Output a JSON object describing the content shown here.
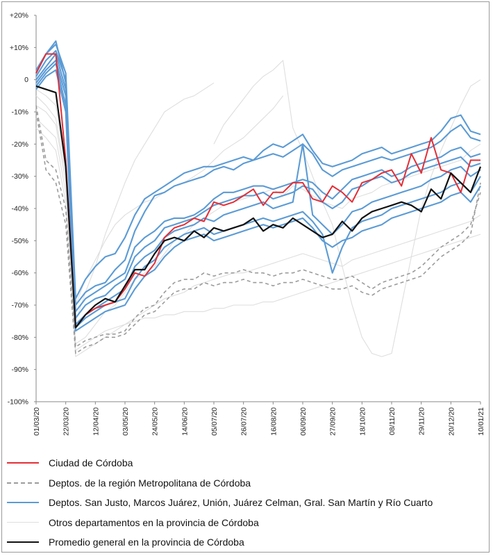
{
  "chart_data": {
    "type": "line",
    "title": "",
    "xlabel": "",
    "ylabel": "",
    "ylim": [
      -100,
      20
    ],
    "y_ticks": [
      {
        "value": 20,
        "label": "+20%"
      },
      {
        "value": 10,
        "label": "+10%"
      },
      {
        "value": 0,
        "label": "0"
      },
      {
        "value": -10,
        "label": "-10%"
      },
      {
        "value": -20,
        "label": "-20%"
      },
      {
        "value": -30,
        "label": "-30%"
      },
      {
        "value": -40,
        "label": "-40%"
      },
      {
        "value": -50,
        "label": "-50%"
      },
      {
        "value": -60,
        "label": "-60%"
      },
      {
        "value": -70,
        "label": "-70%"
      },
      {
        "value": -80,
        "label": "-80%"
      },
      {
        "value": -90,
        "label": "-90%"
      },
      {
        "value": -100,
        "label": "-100%"
      }
    ],
    "x_ticks": [
      {
        "index": 0,
        "label": "01/03/20"
      },
      {
        "index": 3,
        "label": "22/03/20"
      },
      {
        "index": 6,
        "label": "12/04/20"
      },
      {
        "index": 9,
        "label": "03/05/20"
      },
      {
        "index": 12,
        "label": "24/05/20"
      },
      {
        "index": 15,
        "label": "14/06/20"
      },
      {
        "index": 18,
        "label": "05/07/20"
      },
      {
        "index": 21,
        "label": "26/07/20"
      },
      {
        "index": 24,
        "label": "16/08/20"
      },
      {
        "index": 27,
        "label": "06/09/20"
      },
      {
        "index": 30,
        "label": "27/09/20"
      },
      {
        "index": 33,
        "label": "18/10/20"
      },
      {
        "index": 36,
        "label": "08/11/20"
      },
      {
        "index": 39,
        "label": "29/11/20"
      },
      {
        "index": 42,
        "label": "20/12/20"
      },
      {
        "index": 45,
        "label": "10/01/21"
      }
    ],
    "n_points": 46,
    "series": [
      {
        "name": "Otros departamentos en la provincia de Córdoba",
        "group": "otros",
        "values": [
          -5,
          -8,
          -12,
          -30,
          -82,
          -80,
          -76,
          -72,
          -70,
          -66,
          -62,
          -60,
          -58,
          -54,
          -50,
          -48,
          -45,
          -43,
          -41,
          -39,
          -38,
          -37,
          -36,
          -35,
          -34,
          -36,
          -33,
          -34,
          -36,
          -38,
          -39,
          -40,
          -37,
          -36,
          -35,
          -33,
          -32,
          -31,
          -30,
          -29,
          -28,
          -27,
          -26,
          -25,
          -22,
          -20
        ]
      },
      {
        "name": "Otros departamentos en la provincia de Córdoba",
        "group": "otros",
        "values": [
          -12,
          -15,
          -18,
          -35,
          -86,
          -84,
          -82,
          -80,
          -78,
          -76,
          -74,
          -72,
          -70,
          -68,
          -67,
          -66,
          -64,
          -63,
          -62,
          -61,
          -60,
          -60,
          -59,
          -58,
          -57,
          -56,
          -55,
          -54,
          -55,
          -56,
          -57,
          -58,
          -56,
          -55,
          -54,
          -53,
          -52,
          -51,
          -50,
          -49,
          -48,
          -47,
          -46,
          -45,
          -44,
          -42
        ]
      },
      {
        "name": "Otros departamentos en la provincia de Córdoba",
        "group": "otros",
        "values": [
          -8,
          -10,
          -14,
          -32,
          -70,
          -62,
          -56,
          -50,
          -45,
          -42,
          -40,
          -38,
          -37,
          -35,
          -33,
          -32,
          -30,
          -28,
          -25,
          -22,
          -20,
          -18,
          -15,
          -12,
          -9,
          -5,
          null,
          null,
          null,
          null,
          null,
          null,
          null,
          null,
          null,
          null,
          null,
          null,
          null,
          null,
          null,
          null,
          null,
          null,
          null,
          null
        ]
      },
      {
        "name": "Otros departamentos en la provincia de Córdoba",
        "group": "otros",
        "values": [
          -3,
          -5,
          -8,
          -28,
          -75,
          -66,
          -58,
          -48,
          -40,
          -32,
          -25,
          -20,
          -15,
          -10,
          -8,
          -6,
          -5,
          -3,
          -1,
          null,
          null,
          null,
          null,
          null,
          null,
          null,
          null,
          null,
          null,
          null,
          null,
          null,
          null,
          null,
          null,
          null,
          null,
          null,
          null,
          null,
          null,
          null,
          null,
          null,
          null,
          null
        ]
      },
      {
        "name": "Otros departamentos en la provincia de Córdoba",
        "group": "otros",
        "values": [
          null,
          null,
          null,
          null,
          null,
          null,
          null,
          null,
          null,
          null,
          null,
          null,
          null,
          null,
          null,
          null,
          null,
          null,
          -20,
          -14,
          -10,
          -6,
          -2,
          1,
          3,
          6,
          -15,
          -22,
          -30,
          -38,
          -45,
          -58,
          -70,
          -80,
          -85,
          -86,
          -85,
          -70,
          -55,
          -40,
          -30,
          -22,
          -15,
          -8,
          -2,
          0
        ]
      },
      {
        "name": "Otros departamentos en la provincia de Córdoba",
        "group": "otros",
        "values": [
          -15,
          -18,
          -22,
          -38,
          -84,
          -82,
          -80,
          -78,
          -77,
          -76,
          -75,
          -74,
          -74,
          -73,
          -73,
          -72,
          -72,
          -72,
          -71,
          -71,
          -70,
          -70,
          -70,
          -69,
          -69,
          -68,
          -67,
          -66,
          -65,
          -64,
          -63,
          -62,
          -61,
          -60,
          -59,
          -58,
          -57,
          -56,
          -55,
          -54,
          -53,
          -52,
          -51,
          -50,
          -49,
          -48
        ]
      },
      {
        "name": "Deptos. de la región Metropolitana de Córdoba",
        "group": "metro",
        "values": [
          -8,
          -25,
          -28,
          -40,
          -83,
          -81,
          -80,
          -79,
          -79,
          -78,
          -74,
          -71,
          -70,
          -66,
          -63,
          -62,
          -62,
          -60,
          -61,
          -60,
          -60,
          -59,
          -60,
          -60,
          -61,
          -60,
          -60,
          -59,
          -60,
          -61,
          -62,
          -62,
          -61,
          -63,
          -65,
          -63,
          -62,
          -61,
          -60,
          -58,
          -55,
          -52,
          -50,
          -48,
          -45,
          -35
        ]
      },
      {
        "name": "Deptos. de la región Metropolitana de Córdoba",
        "group": "metro",
        "values": [
          -10,
          -28,
          -32,
          -45,
          -85,
          -83,
          -82,
          -80,
          -80,
          -79,
          -76,
          -73,
          -72,
          -69,
          -66,
          -65,
          -65,
          -63,
          -64,
          -63,
          -63,
          -62,
          -63,
          -63,
          -64,
          -63,
          -63,
          -62,
          -63,
          -64,
          -65,
          -65,
          -64,
          -66,
          -67,
          -65,
          -64,
          -63,
          -62,
          -61,
          -58,
          -55,
          -53,
          -51,
          -48,
          -32
        ]
      },
      {
        "name": "Deptos. San Justo, Marcos Juárez, Unión, Juárez Celman, Gral. San Martín y Río Cuarto",
        "group": "sanjusto",
        "values": [
          3,
          8,
          11,
          2,
          -68,
          -62,
          -58,
          -55,
          -54,
          -49,
          -42,
          -37,
          -35,
          -33,
          -31,
          -29,
          -28,
          -27,
          -27,
          -26,
          -25,
          -24,
          -25,
          -22,
          -20,
          -21,
          -19,
          -17,
          -22,
          -26,
          -27,
          -26,
          -25,
          -23,
          -22,
          -21,
          -23,
          -22,
          -21,
          -20,
          -19,
          -16,
          -12,
          -11,
          -16,
          -17
        ]
      },
      {
        "name": "Deptos. San Justo, Marcos Juárez, Unión, Juárez Celman, Gral. San Martín y Río Cuarto",
        "group": "sanjusto",
        "values": [
          1,
          6,
          9,
          0,
          -70,
          -66,
          -64,
          -63,
          -59,
          -56,
          -47,
          -41,
          -36,
          -35,
          -33,
          -32,
          -31,
          -30,
          -28,
          -27,
          -28,
          -26,
          -25,
          -24,
          -23,
          -24,
          -22,
          -20,
          -23,
          -28,
          -30,
          -28,
          -27,
          -26,
          -25,
          -24,
          -25,
          -24,
          -23,
          -22,
          -21,
          -19,
          -16,
          -14,
          -18,
          -19
        ]
      },
      {
        "name": "Deptos. San Justo, Marcos Juárez, Unión, Juárez Celman, Gral. San Martín y Río Cuarto",
        "group": "sanjusto",
        "values": [
          2,
          8,
          12,
          -1,
          -72,
          -68,
          -66,
          -64,
          -62,
          -60,
          -52,
          -49,
          -47,
          -44,
          -43,
          -43,
          -42,
          -40,
          -37,
          -35,
          -35,
          -34,
          -33,
          -33,
          -34,
          -33,
          -32,
          -31,
          -32,
          -35,
          -37,
          -34,
          -31,
          -30,
          -29,
          -28,
          -30,
          -29,
          -27,
          -26,
          -25,
          -24,
          -22,
          -21,
          -24,
          -23
        ]
      },
      {
        "name": "Deptos. San Justo, Marcos Juárez, Unión, Juárez Celman, Gral. San Martín y Río Cuarto",
        "group": "sanjusto",
        "values": [
          0,
          4,
          8,
          -3,
          -74,
          -70,
          -68,
          -67,
          -64,
          -62,
          -55,
          -52,
          -50,
          -46,
          -45,
          -44,
          -43,
          -41,
          -39,
          -38,
          -37,
          -36,
          -36,
          -35,
          -37,
          -36,
          -35,
          -33,
          -34,
          -38,
          -40,
          -38,
          -34,
          -33,
          -31,
          -30,
          -32,
          -31,
          -29,
          -28,
          -27,
          -26,
          -25,
          -24,
          -27,
          -26
        ]
      },
      {
        "name": "Deptos. San Justo, Marcos Juárez, Unión, Juárez Celman, Gral. San Martín y Río Cuarto",
        "group": "sanjusto",
        "values": [
          -1,
          3,
          6,
          -5,
          -76,
          -73,
          -71,
          -69,
          -67,
          -65,
          -58,
          -55,
          -53,
          -49,
          -47,
          -46,
          -45,
          -43,
          -44,
          -42,
          -41,
          -40,
          -39,
          -38,
          -40,
          -39,
          -38,
          -20,
          -42,
          -45,
          -48,
          -45,
          -41,
          -40,
          -38,
          -37,
          -36,
          -35,
          -34,
          -33,
          -31,
          -30,
          -28,
          -27,
          -30,
          -28
        ]
      },
      {
        "name": "Deptos. San Justo, Marcos Juárez, Unión, Juárez Celman, Gral. San Martín y Río Cuarto",
        "group": "sanjusto",
        "values": [
          -2,
          2,
          5,
          -8,
          -77,
          -74,
          -72,
          -70,
          -69,
          -68,
          -62,
          -58,
          -56,
          -52,
          -50,
          -48,
          -47,
          -46,
          -48,
          -47,
          -46,
          -45,
          -44,
          -43,
          -44,
          -43,
          -42,
          -41,
          -44,
          -48,
          -60,
          -52,
          -46,
          -44,
          -43,
          -42,
          -40,
          -39,
          -38,
          -37,
          -36,
          -35,
          -33,
          -32,
          -35,
          -30
        ]
      },
      {
        "name": "Deptos. San Justo, Marcos Juárez, Unión, Juárez Celman, Gral. San Martín y Río Cuarto",
        "group": "sanjusto",
        "values": [
          -3,
          1,
          3,
          -10,
          -78,
          -76,
          -74,
          -72,
          -71,
          -70,
          -65,
          -61,
          -59,
          -55,
          -52,
          -50,
          -49,
          -48,
          -50,
          -49,
          -48,
          -47,
          -46,
          -45,
          -46,
          -45,
          -44,
          -43,
          -46,
          -50,
          -52,
          -50,
          -49,
          -47,
          -46,
          -45,
          -43,
          -42,
          -41,
          -40,
          -39,
          -38,
          -36,
          -35,
          -38,
          -33
        ]
      },
      {
        "name": "Ciudad de Córdoba",
        "group": "ciudad",
        "values": [
          2,
          8,
          8,
          -25,
          -77,
          -73,
          -71,
          -70,
          -69,
          -65,
          -60,
          -61,
          -57,
          -49,
          -46,
          -45,
          -43,
          -44,
          -38,
          -39,
          -38,
          -36,
          -34,
          -39,
          -35,
          -35,
          -32,
          -32,
          -37,
          -38,
          -33,
          -35,
          -38,
          -32,
          -31,
          -29,
          -28,
          -33,
          -23,
          -29,
          -18,
          -28,
          -29,
          -35,
          -25,
          -25
        ]
      },
      {
        "name": "Promedio general en la provincia de Córdoba",
        "group": "promedio",
        "values": [
          -2,
          -3,
          -4,
          -27,
          -77,
          -73,
          -70,
          -68,
          -69,
          -64,
          -59,
          -59,
          -54,
          -50,
          -49,
          -50,
          -47,
          -49,
          -46,
          -47,
          -46,
          -45,
          -43,
          -47,
          -45,
          -46,
          -43,
          -45,
          -47,
          -49,
          -48,
          -44,
          -47,
          -43,
          -41,
          -40,
          -39,
          -38,
          -39,
          -41,
          -34,
          -37,
          -29,
          -32,
          -35,
          -27
        ]
      }
    ],
    "legend": [
      {
        "group": "ciudad",
        "label": "Ciudad de Córdoba",
        "color": "#e32e36",
        "dash": false
      },
      {
        "group": "metro",
        "label": "Deptos. de la región Metropolitana de Córdoba",
        "color": "#9b9b9b",
        "dash": true
      },
      {
        "group": "sanjusto",
        "label": "Deptos. San Justo, Marcos Juárez, Unión, Juárez Celman, Gral. San Martín y Río Cuarto",
        "color": "#5b9bd5",
        "dash": false
      },
      {
        "group": "otros",
        "label": "Otros departamentos en la provincia de Córdoba",
        "color": "#dedede",
        "dash": false
      },
      {
        "group": "promedio",
        "label": "Promedio general en la provincia de Córdoba",
        "color": "#111111",
        "dash": false
      }
    ],
    "legend_position": "bottom"
  },
  "colors": {
    "ciudad": "#e32e36",
    "metro": "#9b9b9b",
    "sanjusto": "#5b9bd5",
    "otros": "#dedede",
    "promedio": "#111111",
    "axis": "#888888"
  }
}
